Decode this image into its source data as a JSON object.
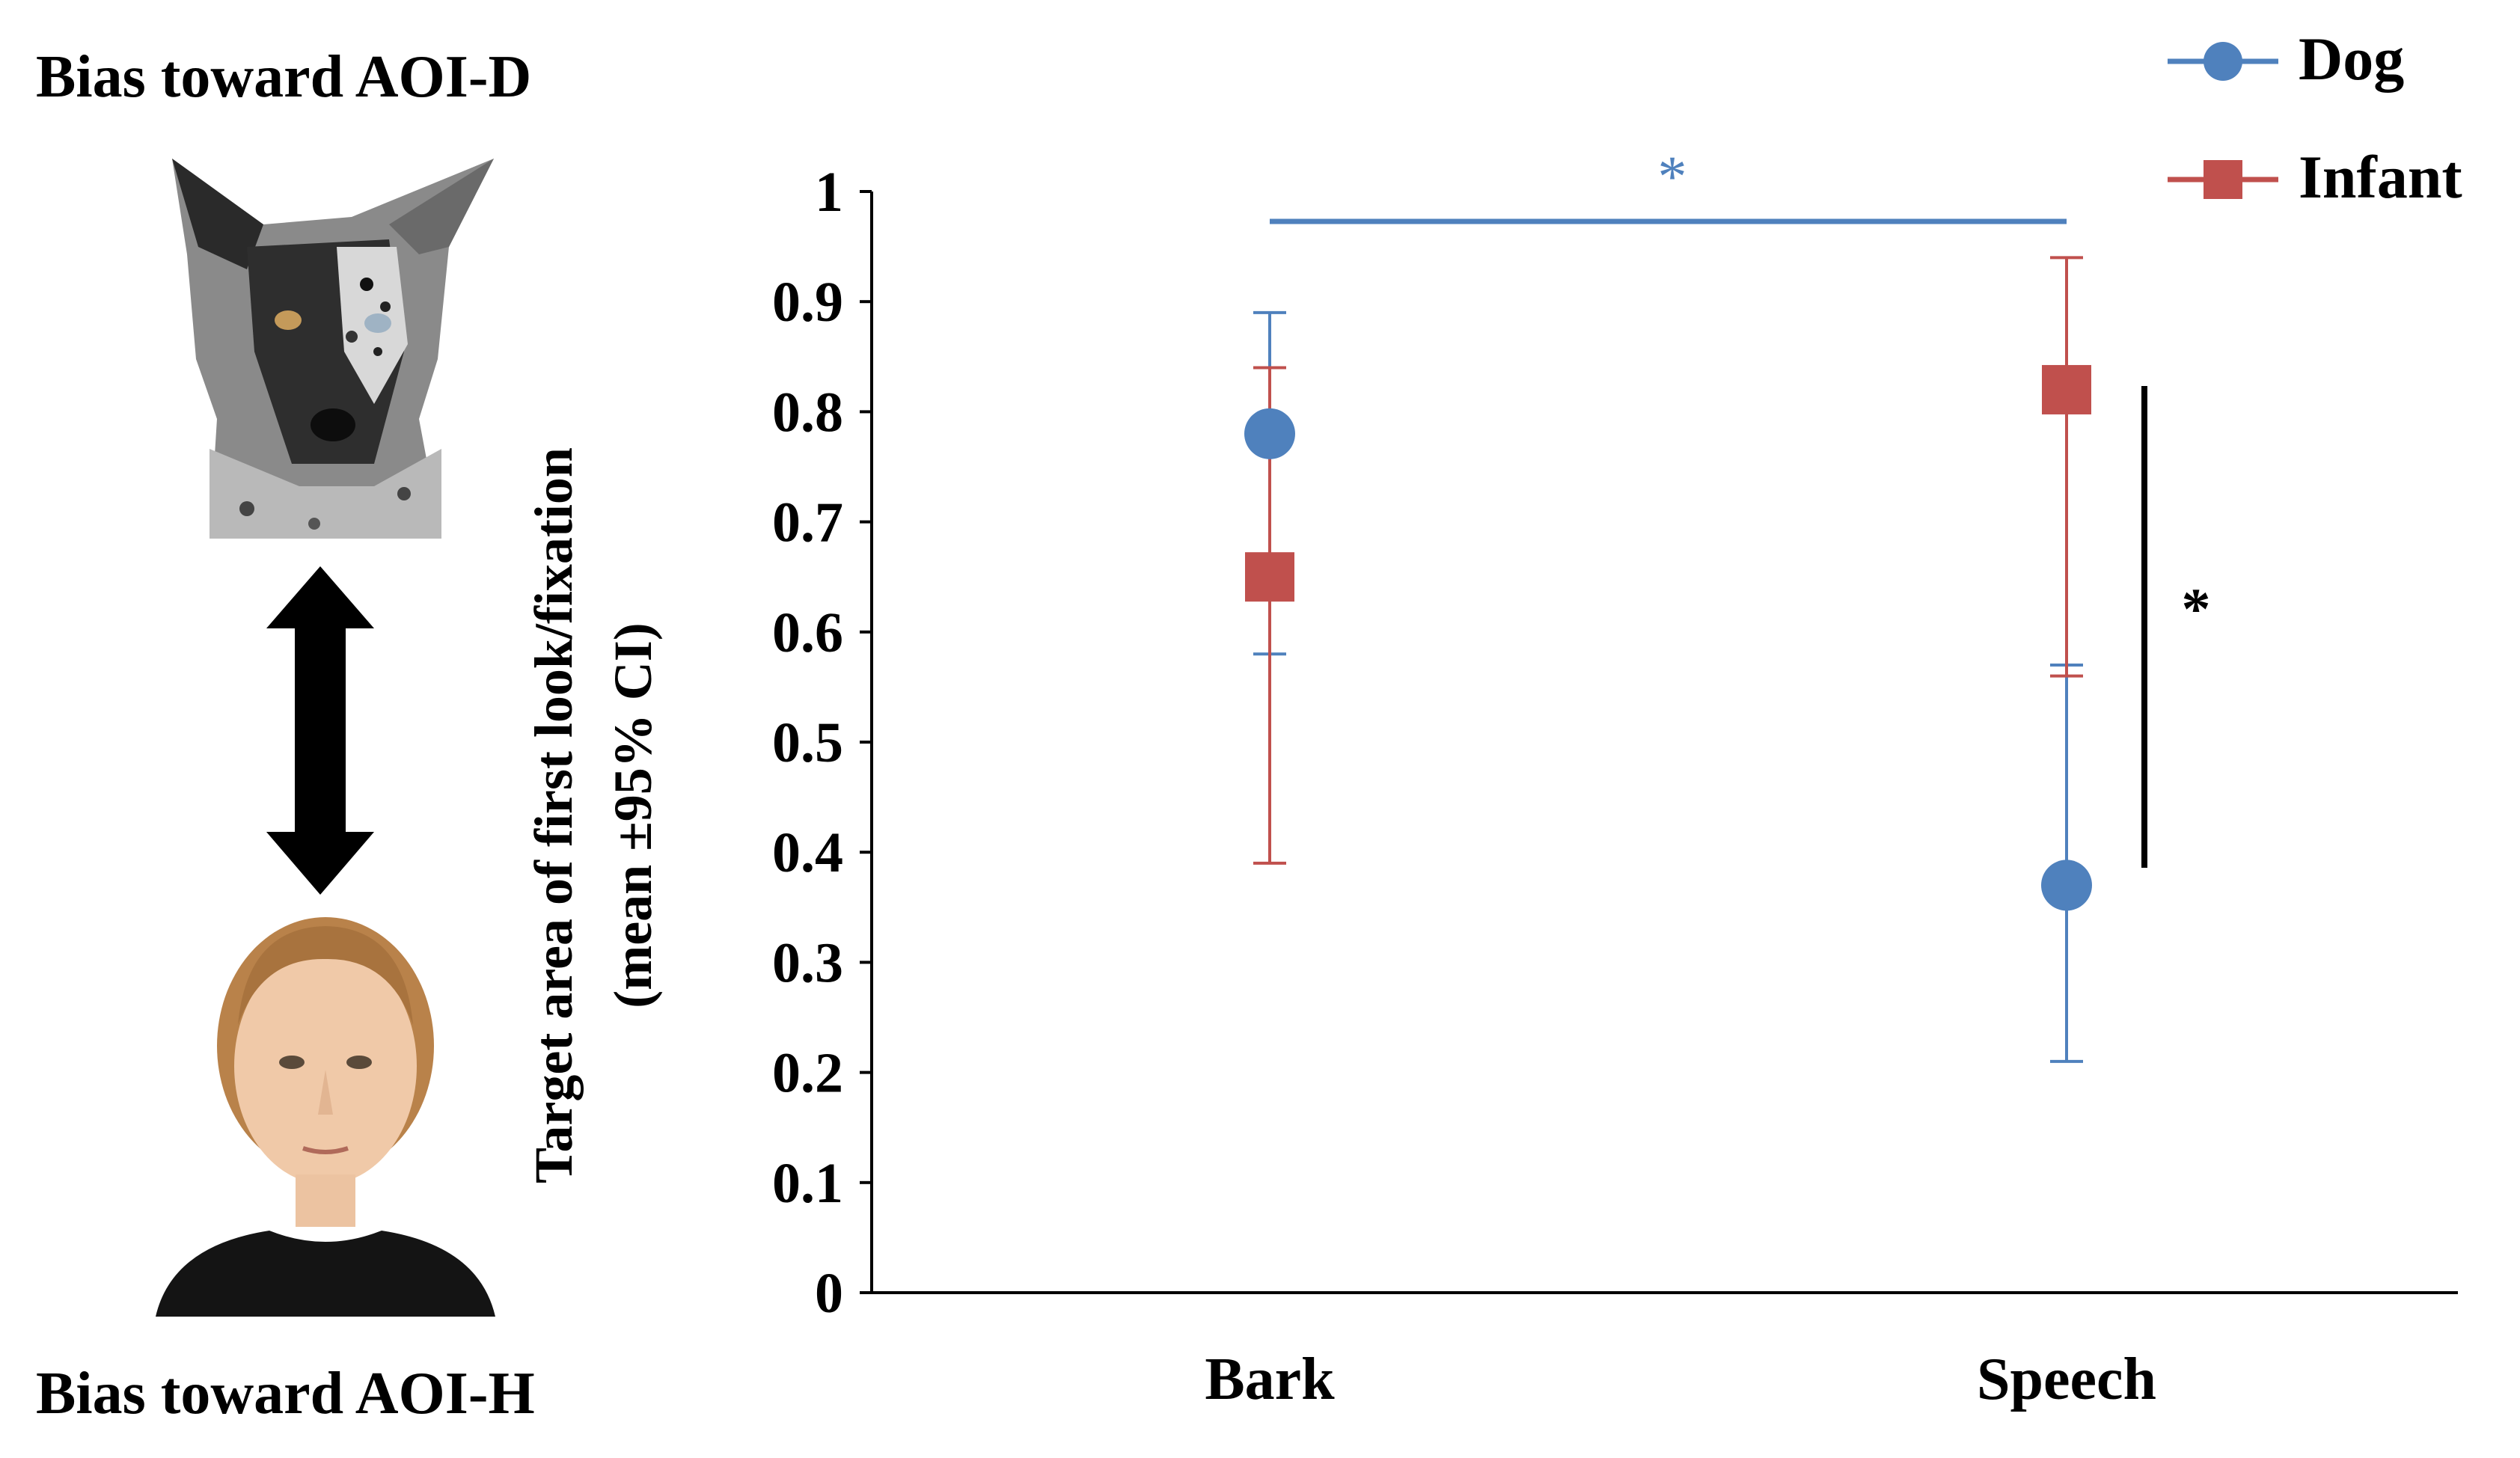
{
  "labels": {
    "top": "Bias toward  AOI-D",
    "bottom": "Bias toward  AOI-H"
  },
  "images": {
    "top": "dog-face-photo",
    "bottom": "human-face-photo",
    "arrow": "double-headed-vertical-arrow"
  },
  "chart_data": {
    "type": "scatter",
    "categories": [
      "Bark",
      "Speech"
    ],
    "ylabel_line1": "Target  area  of first  look/fixation",
    "ylabel_line2": "(mean ±95% CI)",
    "ylim": [
      0,
      1
    ],
    "yticks": [
      "0",
      "0.1",
      "0.2",
      "0.3",
      "0.4",
      "0.5",
      "0.6",
      "0.7",
      "0.8",
      "0.9",
      "1"
    ],
    "grid": false,
    "legend_position": "top-right",
    "series": [
      {
        "name": "Dog",
        "color": "#4f81bd",
        "marker": "circle",
        "values": [
          0.78,
          0.37
        ],
        "ci_low": [
          0.58,
          0.21
        ],
        "ci_high": [
          0.89,
          0.57
        ]
      },
      {
        "name": "Infant",
        "color": "#c0504d",
        "marker": "square",
        "values": [
          0.65,
          0.82
        ],
        "ci_low": [
          0.39,
          0.56
        ],
        "ci_high": [
          0.84,
          0.94
        ]
      }
    ],
    "annotations": [
      {
        "text": "*",
        "color": "#4f81bd",
        "meaning": "Dog: Bark vs Speech"
      },
      {
        "text": "*",
        "color": "#000000",
        "meaning": "Speech: Dog vs Infant"
      }
    ]
  }
}
